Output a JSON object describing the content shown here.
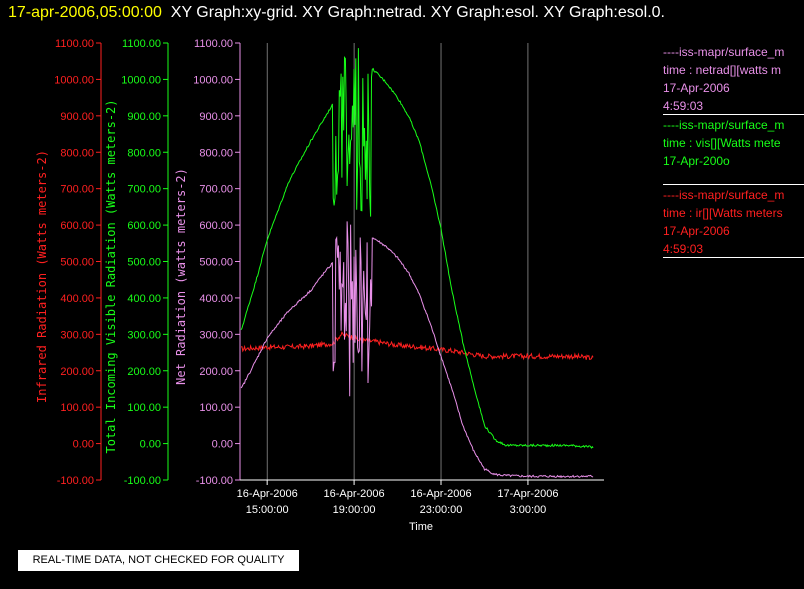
{
  "header": {
    "timestamp": "17-apr-2006,05:00:00",
    "graphs": "XY Graph:xy-grid.  XY Graph:netrad.  XY Graph:esol.  XY Graph:esol.0."
  },
  "colors": {
    "red": "#ff2020",
    "green": "#18ff18",
    "violet": "#e890e8",
    "white": "#ffffff"
  },
  "chart_data": {
    "type": "line",
    "xlabel": "Time",
    "x_ticks": [
      {
        "l1": "16-Apr-2006",
        "l2": "15:00:00",
        "h": 15
      },
      {
        "l1": "16-Apr-2006",
        "l2": "19:00:00",
        "h": 19
      },
      {
        "l1": "16-Apr-2006",
        "l2": "23:00:00",
        "h": 23
      },
      {
        "l1": "17-Apr-2006",
        "l2": "3:00:00",
        "h": 27
      }
    ],
    "x_range_hours": [
      13.75,
      30.5
    ],
    "y_range": [
      -100,
      1100
    ],
    "y_ticks": [
      -100,
      0,
      100,
      200,
      300,
      400,
      500,
      600,
      700,
      800,
      900,
      1000,
      1100
    ],
    "axes": [
      {
        "label": "Infrared Radiation (Watts meters-2)",
        "color": "#ff2020"
      },
      {
        "label": "Total Incoming Visible Radiation (Watts meters-2)",
        "color": "#18ff18"
      },
      {
        "label": "Net Radiation (watts meters-2)",
        "color": "#e890e8"
      }
    ],
    "series": [
      {
        "color": "#ff2020",
        "x": [
          13.8,
          15,
          16,
          17,
          18,
          18.4,
          18.8,
          19.2,
          20,
          21,
          22,
          23,
          23.5,
          24,
          24.5,
          25,
          26,
          27,
          28,
          29,
          30
        ],
        "y": [
          260,
          265,
          265,
          268,
          275,
          300,
          295,
          285,
          280,
          270,
          265,
          258,
          255,
          250,
          245,
          240,
          240,
          240,
          240,
          240,
          235
        ]
      },
      {
        "color": "#18ff18",
        "x": [
          13.8,
          14.5,
          15,
          16,
          17,
          17.5,
          18,
          18.5,
          19,
          19.5,
          20,
          20.5,
          21,
          21.5,
          22,
          22.5,
          23,
          23.5,
          24,
          24.5,
          25,
          25.5,
          26,
          27,
          28,
          29,
          30
        ],
        "y": [
          310,
          450,
          560,
          720,
          830,
          880,
          930,
          1020,
          1060,
          1050,
          1020,
          990,
          950,
          900,
          830,
          720,
          590,
          420,
          280,
          160,
          50,
          10,
          -5,
          -5,
          -5,
          -5,
          -10
        ],
        "noise": [
          18.0,
          19.8,
          620,
          1090
        ]
      },
      {
        "color": "#e890e8",
        "x": [
          13.8,
          14.5,
          15,
          16,
          17,
          17.5,
          18,
          18.5,
          19,
          19.5,
          20,
          20.5,
          21,
          21.5,
          22,
          22.5,
          23,
          23.5,
          24,
          24.5,
          25,
          25.5,
          26,
          27,
          28,
          29,
          30
        ],
        "y": [
          150,
          230,
          290,
          365,
          420,
          460,
          495,
          520,
          560,
          580,
          560,
          540,
          510,
          470,
          410,
          330,
          240,
          150,
          50,
          -20,
          -70,
          -85,
          -88,
          -90,
          -90,
          -90,
          -90
        ],
        "noise": [
          18.0,
          19.8,
          130,
          610
        ]
      }
    ],
    "legend": [
      {
        "color": "#e890e8",
        "lines": [
          "----iss-mapr/surface_m",
          "time : netrad[][watts m",
          "17-Apr-2006",
          "4:59:03"
        ]
      },
      {
        "color": "#18ff18",
        "lines": [
          "----iss-mapr/surface_m",
          "time : vis[][Watts mete",
          "17-Apr-200o"
        ]
      },
      {
        "color": "#ff2020",
        "lines": [
          "----iss-mapr/surface_m",
          "time : ir[][Watts meters",
          "17-Apr-2006",
          "4:59:03"
        ]
      }
    ]
  },
  "notice": "REAL-TIME DATA, NOT CHECKED FOR QUALITY"
}
